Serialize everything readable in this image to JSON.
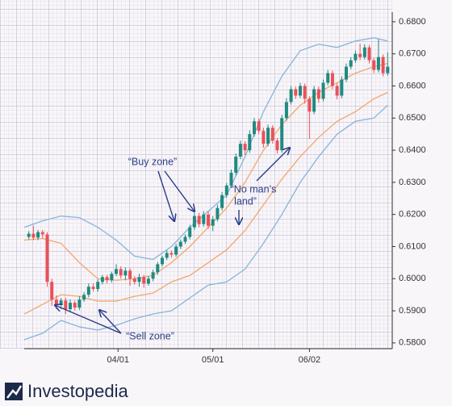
{
  "chart_data": {
    "type": "candlestick",
    "up_color": "#1f8a80",
    "down_color": "#e8525a",
    "xlim": [
      0,
      80
    ],
    "xticks": [
      {
        "value": 20.4,
        "label": "04/01"
      },
      {
        "value": 41,
        "label": "05/01"
      },
      {
        "value": 62,
        "label": "06/02"
      }
    ],
    "ylim": [
      0.5782,
      0.683
    ],
    "yticks": [
      {
        "value": 0.58,
        "label": "0.5800"
      },
      {
        "value": 0.59,
        "label": "0.5900"
      },
      {
        "value": 0.6,
        "label": "0.6000"
      },
      {
        "value": 0.61,
        "label": "0.6100"
      },
      {
        "value": 0.62,
        "label": "0.6200"
      },
      {
        "value": 0.63,
        "label": "0.6300"
      },
      {
        "value": 0.64,
        "label": "0.6400"
      },
      {
        "value": 0.65,
        "label": "0.6500"
      },
      {
        "value": 0.66,
        "label": "0.6600"
      },
      {
        "value": 0.67,
        "label": "0.6700"
      },
      {
        "value": 0.68,
        "label": "0.6800"
      }
    ],
    "x": [
      1,
      2,
      3,
      4,
      5,
      6,
      7,
      8,
      9,
      10,
      11,
      12,
      13,
      14,
      15,
      16,
      17,
      18,
      19,
      20,
      21,
      22,
      23,
      24,
      25,
      26,
      27,
      28,
      29,
      30,
      31,
      32,
      33,
      34,
      35,
      36,
      37,
      38,
      39,
      40,
      41,
      42,
      43,
      44,
      45,
      46,
      47,
      48,
      49,
      50,
      51,
      52,
      53,
      54,
      55,
      56,
      57,
      58,
      59,
      60,
      61,
      62,
      63,
      64,
      65,
      66,
      67,
      68,
      69,
      70,
      71,
      72,
      73,
      74,
      75,
      76,
      77,
      78,
      79
    ],
    "ohlc": [
      [
        0.613,
        0.6148,
        0.6122,
        0.614
      ],
      [
        0.614,
        0.6165,
        0.612,
        0.6128
      ],
      [
        0.6128,
        0.6152,
        0.612,
        0.6145
      ],
      [
        0.6145,
        0.6152,
        0.6125,
        0.6138
      ],
      [
        0.6138,
        0.6145,
        0.5975,
        0.599
      ],
      [
        0.599,
        0.6,
        0.5915,
        0.5935
      ],
      [
        0.5935,
        0.5948,
        0.5905,
        0.5918
      ],
      [
        0.5918,
        0.594,
        0.5905,
        0.5932
      ],
      [
        0.5932,
        0.594,
        0.589,
        0.5905
      ],
      [
        0.5905,
        0.5935,
        0.5895,
        0.5925
      ],
      [
        0.5925,
        0.5932,
        0.59,
        0.591
      ],
      [
        0.591,
        0.5945,
        0.5902,
        0.5935
      ],
      [
        0.5935,
        0.5958,
        0.5928,
        0.595
      ],
      [
        0.595,
        0.5985,
        0.5942,
        0.5975
      ],
      [
        0.5975,
        0.5985,
        0.596,
        0.5968
      ],
      [
        0.5968,
        0.5998,
        0.596,
        0.599
      ],
      [
        0.599,
        0.6012,
        0.5982,
        0.6005
      ],
      [
        0.6005,
        0.6012,
        0.5985,
        0.5995
      ],
      [
        0.5995,
        0.6022,
        0.5988,
        0.6015
      ],
      [
        0.6015,
        0.6045,
        0.6008,
        0.603
      ],
      [
        0.603,
        0.6038,
        0.6,
        0.601
      ],
      [
        0.601,
        0.6035,
        0.5995,
        0.6025
      ],
      [
        0.6025,
        0.6032,
        0.5978,
        0.6
      ],
      [
        0.6,
        0.6008,
        0.5982,
        0.599
      ],
      [
        0.599,
        0.6015,
        0.5975,
        0.6005
      ],
      [
        0.6005,
        0.6012,
        0.5972,
        0.5985
      ],
      [
        0.5985,
        0.6008,
        0.5978,
        0.6
      ],
      [
        0.6,
        0.6028,
        0.5992,
        0.602
      ],
      [
        0.602,
        0.6052,
        0.6012,
        0.6045
      ],
      [
        0.6045,
        0.6072,
        0.6038,
        0.6065
      ],
      [
        0.6065,
        0.6088,
        0.6058,
        0.608
      ],
      [
        0.608,
        0.6088,
        0.6065,
        0.6075
      ],
      [
        0.6075,
        0.6108,
        0.6068,
        0.61
      ],
      [
        0.61,
        0.6122,
        0.6092,
        0.6115
      ],
      [
        0.6115,
        0.6138,
        0.6108,
        0.613
      ],
      [
        0.613,
        0.6168,
        0.6122,
        0.616
      ],
      [
        0.616,
        0.6205,
        0.6152,
        0.6195
      ],
      [
        0.6195,
        0.6205,
        0.616,
        0.617
      ],
      [
        0.617,
        0.621,
        0.6162,
        0.62
      ],
      [
        0.62,
        0.621,
        0.6155,
        0.6165
      ],
      [
        0.6165,
        0.6195,
        0.6148,
        0.6185
      ],
      [
        0.6185,
        0.623,
        0.6178,
        0.622
      ],
      [
        0.622,
        0.627,
        0.6212,
        0.626
      ],
      [
        0.626,
        0.6298,
        0.6252,
        0.629
      ],
      [
        0.629,
        0.634,
        0.6282,
        0.633
      ],
      [
        0.633,
        0.639,
        0.6322,
        0.638
      ],
      [
        0.638,
        0.643,
        0.6372,
        0.642
      ],
      [
        0.642,
        0.6428,
        0.6385,
        0.64
      ],
      [
        0.64,
        0.6462,
        0.6392,
        0.645
      ],
      [
        0.645,
        0.65,
        0.6442,
        0.649
      ],
      [
        0.649,
        0.6498,
        0.645,
        0.646
      ],
      [
        0.646,
        0.647,
        0.6408,
        0.642
      ],
      [
        0.642,
        0.648,
        0.6412,
        0.647
      ],
      [
        0.647,
        0.6478,
        0.642,
        0.643
      ],
      [
        0.643,
        0.6438,
        0.639,
        0.64
      ],
      [
        0.64,
        0.651,
        0.6392,
        0.65
      ],
      [
        0.65,
        0.6562,
        0.6492,
        0.655
      ],
      [
        0.655,
        0.66,
        0.6542,
        0.659
      ],
      [
        0.659,
        0.6598,
        0.656,
        0.657
      ],
      [
        0.657,
        0.661,
        0.6562,
        0.66
      ],
      [
        0.66,
        0.6608,
        0.6545,
        0.656
      ],
      [
        0.656,
        0.6568,
        0.6435,
        0.652
      ],
      [
        0.652,
        0.66,
        0.6512,
        0.659
      ],
      [
        0.659,
        0.6598,
        0.6548,
        0.656
      ],
      [
        0.656,
        0.662,
        0.6552,
        0.661
      ],
      [
        0.661,
        0.665,
        0.6602,
        0.664
      ],
      [
        0.664,
        0.6648,
        0.659,
        0.66
      ],
      [
        0.66,
        0.6608,
        0.6558,
        0.657
      ],
      [
        0.657,
        0.663,
        0.6562,
        0.662
      ],
      [
        0.662,
        0.667,
        0.6612,
        0.666
      ],
      [
        0.666,
        0.669,
        0.6652,
        0.668
      ],
      [
        0.668,
        0.671,
        0.6672,
        0.67
      ],
      [
        0.67,
        0.6732,
        0.668,
        0.669
      ],
      [
        0.669,
        0.673,
        0.6682,
        0.672
      ],
      [
        0.672,
        0.6728,
        0.667,
        0.668
      ],
      [
        0.668,
        0.6688,
        0.664,
        0.665
      ],
      [
        0.665,
        0.6745,
        0.6642,
        0.669
      ],
      [
        0.669,
        0.6698,
        0.663,
        0.664
      ],
      [
        0.664,
        0.6705,
        0.6632,
        0.666
      ]
    ],
    "series": [
      {
        "color": "#86b5dc",
        "x": [
          0,
          4,
          8,
          12,
          16,
          20,
          24,
          28,
          32,
          36,
          40,
          44,
          48,
          52,
          56,
          60,
          64,
          68,
          72,
          76,
          79
        ],
        "values": [
          0.616,
          0.618,
          0.6195,
          0.619,
          0.616,
          0.612,
          0.607,
          0.606,
          0.61,
          0.616,
          0.621,
          0.626,
          0.638,
          0.652,
          0.663,
          0.671,
          0.673,
          0.672,
          0.674,
          0.675,
          0.674
        ]
      },
      {
        "color": "#f4a66a",
        "x": [
          0,
          4,
          8,
          12,
          16,
          20,
          24,
          28,
          32,
          36,
          40,
          44,
          48,
          52,
          56,
          60,
          64,
          68,
          72,
          76,
          79
        ],
        "values": [
          0.612,
          0.6125,
          0.611,
          0.605,
          0.6,
          0.5995,
          0.6,
          0.601,
          0.605,
          0.61,
          0.616,
          0.622,
          0.63,
          0.64,
          0.648,
          0.654,
          0.658,
          0.661,
          0.664,
          0.666,
          0.667
        ]
      },
      {
        "color": "#f4a66a",
        "x": [
          0,
          4,
          8,
          12,
          16,
          20,
          24,
          28,
          32,
          36,
          40,
          44,
          48,
          52,
          56,
          60,
          64,
          68,
          72,
          76,
          79
        ],
        "values": [
          0.589,
          0.592,
          0.595,
          0.5945,
          0.593,
          0.593,
          0.5945,
          0.5955,
          0.599,
          0.601,
          0.605,
          0.609,
          0.615,
          0.623,
          0.631,
          0.638,
          0.644,
          0.649,
          0.652,
          0.656,
          0.658
        ]
      },
      {
        "color": "#86b5dc",
        "x": [
          0,
          4,
          8,
          12,
          16,
          20,
          24,
          28,
          32,
          36,
          40,
          44,
          48,
          52,
          56,
          60,
          64,
          68,
          72,
          76,
          79
        ],
        "values": [
          0.581,
          0.583,
          0.587,
          0.585,
          0.584,
          0.5855,
          0.5875,
          0.589,
          0.59,
          0.594,
          0.598,
          0.599,
          0.603,
          0.611,
          0.62,
          0.63,
          0.638,
          0.645,
          0.649,
          0.65,
          0.654
        ]
      }
    ],
    "annotations": [
      "“Buy zone”",
      "“No man’s",
      "land”",
      "“Sell zone”"
    ]
  },
  "logo": "Investopedia"
}
